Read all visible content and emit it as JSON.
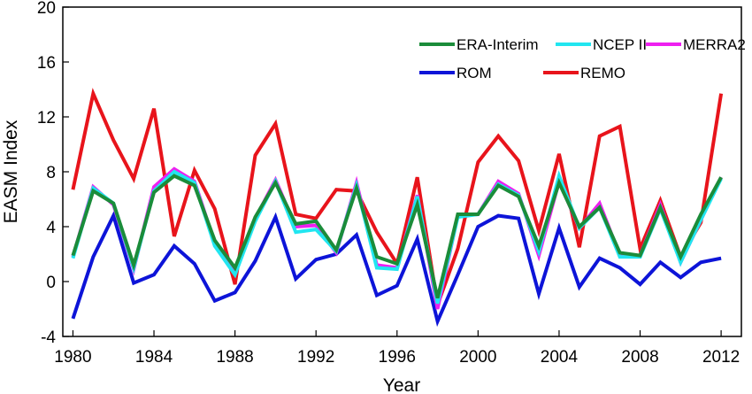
{
  "chart_data": {
    "type": "line",
    "title": "",
    "xlabel": "Year",
    "ylabel": "EASM Index",
    "xlim": [
      1979.5,
      2013
    ],
    "ylim": [
      -4,
      20
    ],
    "xticks": [
      1980,
      1984,
      1988,
      1992,
      1996,
      2000,
      2004,
      2008,
      2012
    ],
    "yticks": [
      -4,
      0,
      4,
      8,
      12,
      16,
      20
    ],
    "grid": false,
    "legend_position": "top-right",
    "x": [
      1980,
      1981,
      1982,
      1983,
      1984,
      1985,
      1986,
      1987,
      1988,
      1989,
      1990,
      1991,
      1992,
      1993,
      1994,
      1995,
      1996,
      1997,
      1998,
      1999,
      2000,
      2001,
      2002,
      2003,
      2004,
      2005,
      2006,
      2007,
      2008,
      2009,
      2010,
      2011,
      2012
    ],
    "series": [
      {
        "name": "REMO",
        "color": "#e8141b",
        "values": [
          6.7,
          13.7,
          10.3,
          7.5,
          12.6,
          3.3,
          8.1,
          5.3,
          -0.2,
          9.2,
          11.5,
          4.9,
          4.6,
          6.7,
          6.6,
          3.6,
          1.3,
          7.6,
          -1.7,
          2.4,
          8.7,
          10.6,
          8.8,
          3.7,
          9.3,
          2.5,
          10.6,
          11.3,
          2.4,
          5.9,
          1.8,
          4.3,
          13.7
        ]
      },
      {
        "name": "ROM",
        "color": "#0d14d8",
        "values": [
          -2.7,
          1.8,
          4.8,
          -0.1,
          0.5,
          2.6,
          1.3,
          -1.4,
          -0.8,
          1.5,
          4.7,
          0.2,
          1.6,
          2.0,
          3.4,
          -1.0,
          -0.3,
          3.1,
          -2.9,
          0.5,
          4.0,
          4.8,
          4.6,
          -0.9,
          3.9,
          -0.4,
          1.7,
          1.0,
          -0.2,
          1.4,
          0.3,
          1.4,
          1.7
        ]
      },
      {
        "name": "MERRA2",
        "color": "#ee1ff0",
        "values": [
          1.8,
          6.9,
          5.6,
          0.9,
          6.9,
          8.2,
          7.3,
          2.8,
          0.8,
          4.6,
          7.4,
          4.0,
          4.1,
          2.1,
          7.2,
          1.2,
          1.0,
          6.3,
          -2.0,
          4.8,
          4.9,
          7.3,
          6.4,
          1.9,
          7.3,
          3.9,
          5.7,
          1.9,
          1.9,
          5.6,
          1.4,
          4.5,
          7.6
        ]
      },
      {
        "name": "NCEP II",
        "color": "#21e6f0",
        "values": [
          1.7,
          6.8,
          5.7,
          1.0,
          6.6,
          8.0,
          7.2,
          2.6,
          0.5,
          4.4,
          7.3,
          3.6,
          3.8,
          2.2,
          7.0,
          1.0,
          0.9,
          6.2,
          -1.6,
          4.7,
          4.9,
          7.1,
          6.3,
          2.2,
          7.7,
          3.9,
          5.4,
          1.8,
          1.8,
          5.3,
          1.4,
          4.5,
          7.5
        ]
      },
      {
        "name": "ERA-Interim",
        "color": "#1b8c3a",
        "values": [
          1.9,
          6.6,
          5.7,
          1.2,
          6.5,
          7.7,
          7.0,
          3.0,
          1.0,
          4.7,
          7.2,
          4.2,
          4.4,
          2.3,
          6.8,
          1.8,
          1.3,
          5.6,
          -1.2,
          4.9,
          4.9,
          7.0,
          6.2,
          2.6,
          7.2,
          4.0,
          5.4,
          2.1,
          1.9,
          5.4,
          1.8,
          4.9,
          7.6
        ]
      }
    ],
    "legend": [
      {
        "name": "ERA-Interim",
        "color": "#1b8c3a"
      },
      {
        "name": "NCEP II",
        "color": "#21e6f0"
      },
      {
        "name": "MERRA2",
        "color": "#ee1ff0"
      },
      {
        "name": "ROM",
        "color": "#0d14d8"
      },
      {
        "name": "REMO",
        "color": "#e8141b"
      }
    ]
  }
}
